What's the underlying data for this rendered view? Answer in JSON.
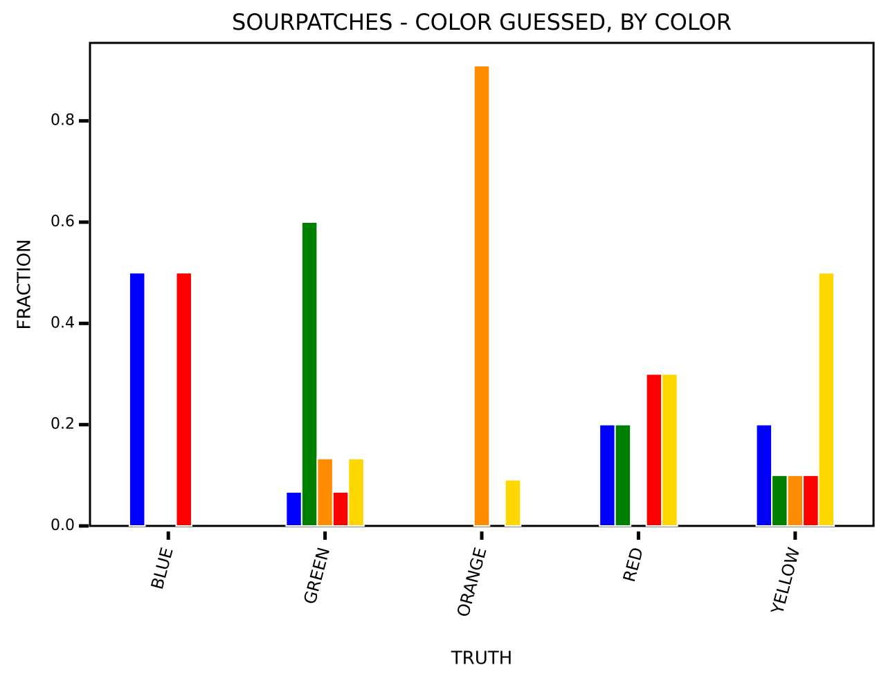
{
  "chart_data": {
    "type": "bar",
    "title": "SOURPATCHES - COLOR GUESSED, BY COLOR",
    "x_label": "TRUTH",
    "y_label": "FRACTION",
    "categories": [
      "BLUE",
      "GREEN",
      "ORANGE",
      "RED",
      "YELLOW"
    ],
    "series": [
      {
        "color": "#0000ff",
        "values": [
          0.5,
          0.067,
          0,
          0.2,
          0.2
        ]
      },
      {
        "color": "#008000",
        "values": [
          0,
          0.6,
          0,
          0.2,
          0.1
        ]
      },
      {
        "color": "#ff8c00",
        "values": [
          0,
          0.133,
          0.909,
          0,
          0.1
        ]
      },
      {
        "color": "#ff0000",
        "values": [
          0.5,
          0.067,
          0,
          0.3,
          0.1
        ]
      },
      {
        "color": "#ffd700",
        "values": [
          0,
          0.133,
          0.091,
          0.3,
          0.5
        ]
      }
    ],
    "ylim": [
      0,
      0.954
    ],
    "yticks": [
      {
        "value": 0,
        "label": "0.0"
      },
      0.2,
      0.4,
      0.6,
      0.8
    ]
  }
}
